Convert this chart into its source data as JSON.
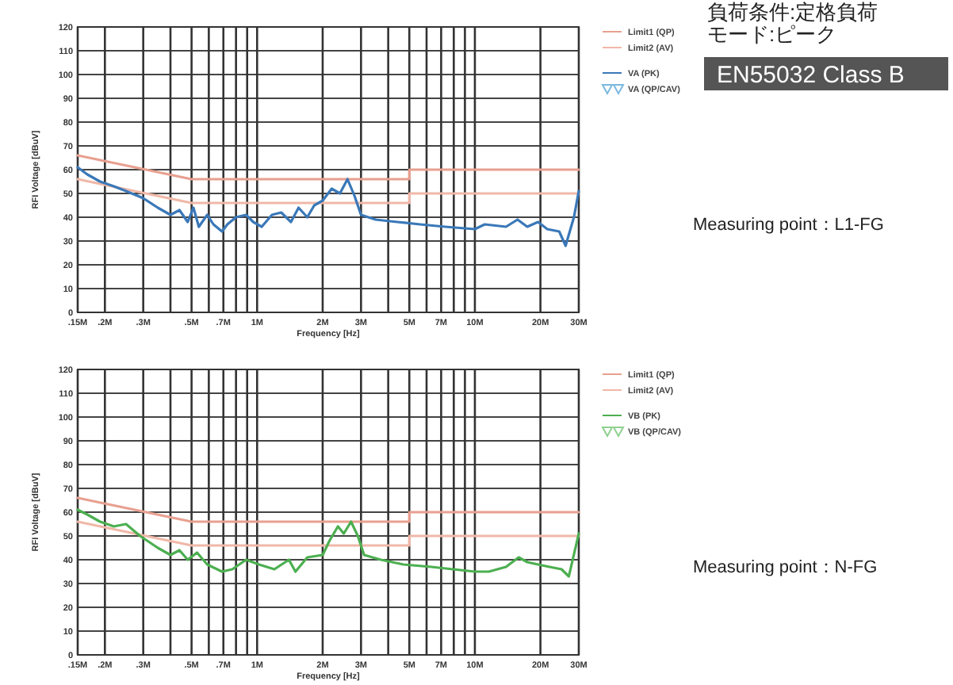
{
  "chart_data": [
    {
      "type": "line",
      "xlabel": "Frequency [Hz]",
      "ylabel": "RFI Voltage [dBuV]",
      "log": "x",
      "grid": true,
      "legend": "right",
      "xlim": [
        0.15,
        30
      ],
      "ylim": [
        0,
        120
      ],
      "yticks": [
        0,
        10,
        20,
        30,
        40,
        50,
        60,
        70,
        80,
        90,
        100,
        110,
        120
      ],
      "xticks": [
        {
          "value": 0.15,
          "label": ".15M"
        },
        {
          "value": 0.2,
          "label": ".2M"
        },
        {
          "value": 0.3,
          "label": ".3M"
        },
        {
          "value": 0.4,
          "label": null
        },
        {
          "value": 0.5,
          "label": ".5M"
        },
        {
          "value": 0.6,
          "label": null
        },
        {
          "value": 0.7,
          "label": ".7M"
        },
        {
          "value": 0.8,
          "label": null
        },
        {
          "value": 0.9,
          "label": null
        },
        {
          "value": 1,
          "label": "1M"
        },
        {
          "value": 2,
          "label": "2M"
        },
        {
          "value": 3,
          "label": "3M"
        },
        {
          "value": 4,
          "label": null
        },
        {
          "value": 5,
          "label": "5M"
        },
        {
          "value": 6,
          "label": null
        },
        {
          "value": 7,
          "label": "7M"
        },
        {
          "value": 8,
          "label": null
        },
        {
          "value": 9,
          "label": null
        },
        {
          "value": 10,
          "label": "10M"
        },
        {
          "value": 20,
          "label": "20M"
        },
        {
          "value": 30,
          "label": "30M"
        }
      ],
      "series": [
        {
          "name": "Limit1 (QP)",
          "color": "#e8a090",
          "x": [
            0.15,
            0.5,
            5,
            5,
            30
          ],
          "values": [
            66,
            56,
            56,
            60,
            60
          ]
        },
        {
          "name": "Limit2 (AV)",
          "color": "#f0b8a8",
          "x": [
            0.15,
            0.5,
            5,
            5,
            30
          ],
          "values": [
            56,
            46,
            46,
            50,
            50
          ]
        },
        {
          "name": "VA (PK)",
          "color": "#3a78b8",
          "x": [
            0.15,
            0.166,
            0.19,
            0.22,
            0.25,
            0.3,
            0.35,
            0.4,
            0.44,
            0.48,
            0.51,
            0.54,
            0.59,
            0.63,
            0.69,
            0.73,
            0.8,
            0.89,
            0.96,
            1.05,
            1.17,
            1.29,
            1.43,
            1.55,
            1.7,
            1.83,
            2.0,
            2.2,
            2.4,
            2.6,
            2.8,
            3.0,
            3.5,
            4.4,
            5.6,
            7.3,
            10,
            11.1,
            13.9,
            15.7,
            17.4,
            19.5,
            21.5,
            24.4,
            26.1,
            28.5,
            30
          ],
          "values": [
            61,
            58,
            55,
            53,
            51,
            48,
            44,
            41,
            43,
            38,
            44,
            36,
            41,
            37,
            34,
            37,
            40,
            41,
            38,
            36,
            41,
            42,
            38,
            44,
            40,
            45,
            47,
            52,
            50,
            56,
            49,
            41,
            39,
            38,
            37,
            36,
            35,
            37,
            36,
            39,
            36,
            38,
            35,
            34,
            28,
            40,
            51
          ]
        },
        {
          "name": "VA (QP/CAV)",
          "type": "scatter",
          "marker": "triangle",
          "color": "#7ab8e0"
        }
      ]
    },
    {
      "type": "line",
      "xlabel": "Frequency [Hz]",
      "ylabel": "RFI Voltage [dBuV]",
      "log": "x",
      "grid": true,
      "legend": "right",
      "xlim": [
        0.15,
        30
      ],
      "ylim": [
        0,
        120
      ],
      "yticks": [
        0,
        10,
        20,
        30,
        40,
        50,
        60,
        70,
        80,
        90,
        100,
        110,
        120
      ],
      "xticks": [
        {
          "value": 0.15,
          "label": ".15M"
        },
        {
          "value": 0.2,
          "label": ".2M"
        },
        {
          "value": 0.3,
          "label": ".3M"
        },
        {
          "value": 0.4,
          "label": null
        },
        {
          "value": 0.5,
          "label": ".5M"
        },
        {
          "value": 0.6,
          "label": null
        },
        {
          "value": 0.7,
          "label": ".7M"
        },
        {
          "value": 0.8,
          "label": null
        },
        {
          "value": 0.9,
          "label": null
        },
        {
          "value": 1,
          "label": "1M"
        },
        {
          "value": 2,
          "label": "2M"
        },
        {
          "value": 3,
          "label": "3M"
        },
        {
          "value": 4,
          "label": null
        },
        {
          "value": 5,
          "label": "5M"
        },
        {
          "value": 6,
          "label": null
        },
        {
          "value": 7,
          "label": "7M"
        },
        {
          "value": 8,
          "label": null
        },
        {
          "value": 9,
          "label": null
        },
        {
          "value": 10,
          "label": "10M"
        },
        {
          "value": 20,
          "label": "20M"
        },
        {
          "value": 30,
          "label": "30M"
        }
      ],
      "series": [
        {
          "name": "Limit1 (QP)",
          "color": "#e8a090",
          "x": [
            0.15,
            0.5,
            5,
            5,
            30
          ],
          "values": [
            66,
            56,
            56,
            60,
            60
          ]
        },
        {
          "name": "Limit2 (AV)",
          "color": "#f0b8a8",
          "x": [
            0.15,
            0.5,
            5,
            5,
            30
          ],
          "values": [
            56,
            46,
            46,
            50,
            50
          ]
        },
        {
          "name": "VB (PK)",
          "color": "#4caf50",
          "x": [
            0.15,
            0.166,
            0.19,
            0.22,
            0.25,
            0.29,
            0.35,
            0.4,
            0.44,
            0.48,
            0.53,
            0.59,
            0.69,
            0.77,
            0.89,
            1.02,
            1.2,
            1.4,
            1.5,
            1.7,
            2.0,
            2.15,
            2.35,
            2.5,
            2.7,
            2.9,
            3.1,
            3.7,
            4.7,
            6.3,
            10,
            11.6,
            13.9,
            15.9,
            17.4,
            19.5,
            22,
            25,
            27,
            30
          ],
          "values": [
            61,
            59,
            56,
            54,
            55,
            50,
            45,
            42,
            44,
            40,
            43,
            38,
            35,
            36,
            40,
            38,
            36,
            40,
            35,
            41,
            42,
            48,
            54,
            51,
            56,
            50,
            42,
            40,
            38,
            37,
            35,
            35,
            37,
            41,
            39,
            38,
            37,
            36,
            33,
            51
          ]
        },
        {
          "name": "VB (QP/CAV)",
          "type": "scatter",
          "marker": "triangle",
          "color": "#8fd08f"
        }
      ]
    },
    {
      "type": "other",
      "title": "EN55032 Class B",
      "annotations": [
        "負荷条件:定格負荷",
        "モード:ピーク",
        "Measuring point：L1-FG",
        "Measuring point：N-FG"
      ]
    }
  ]
}
